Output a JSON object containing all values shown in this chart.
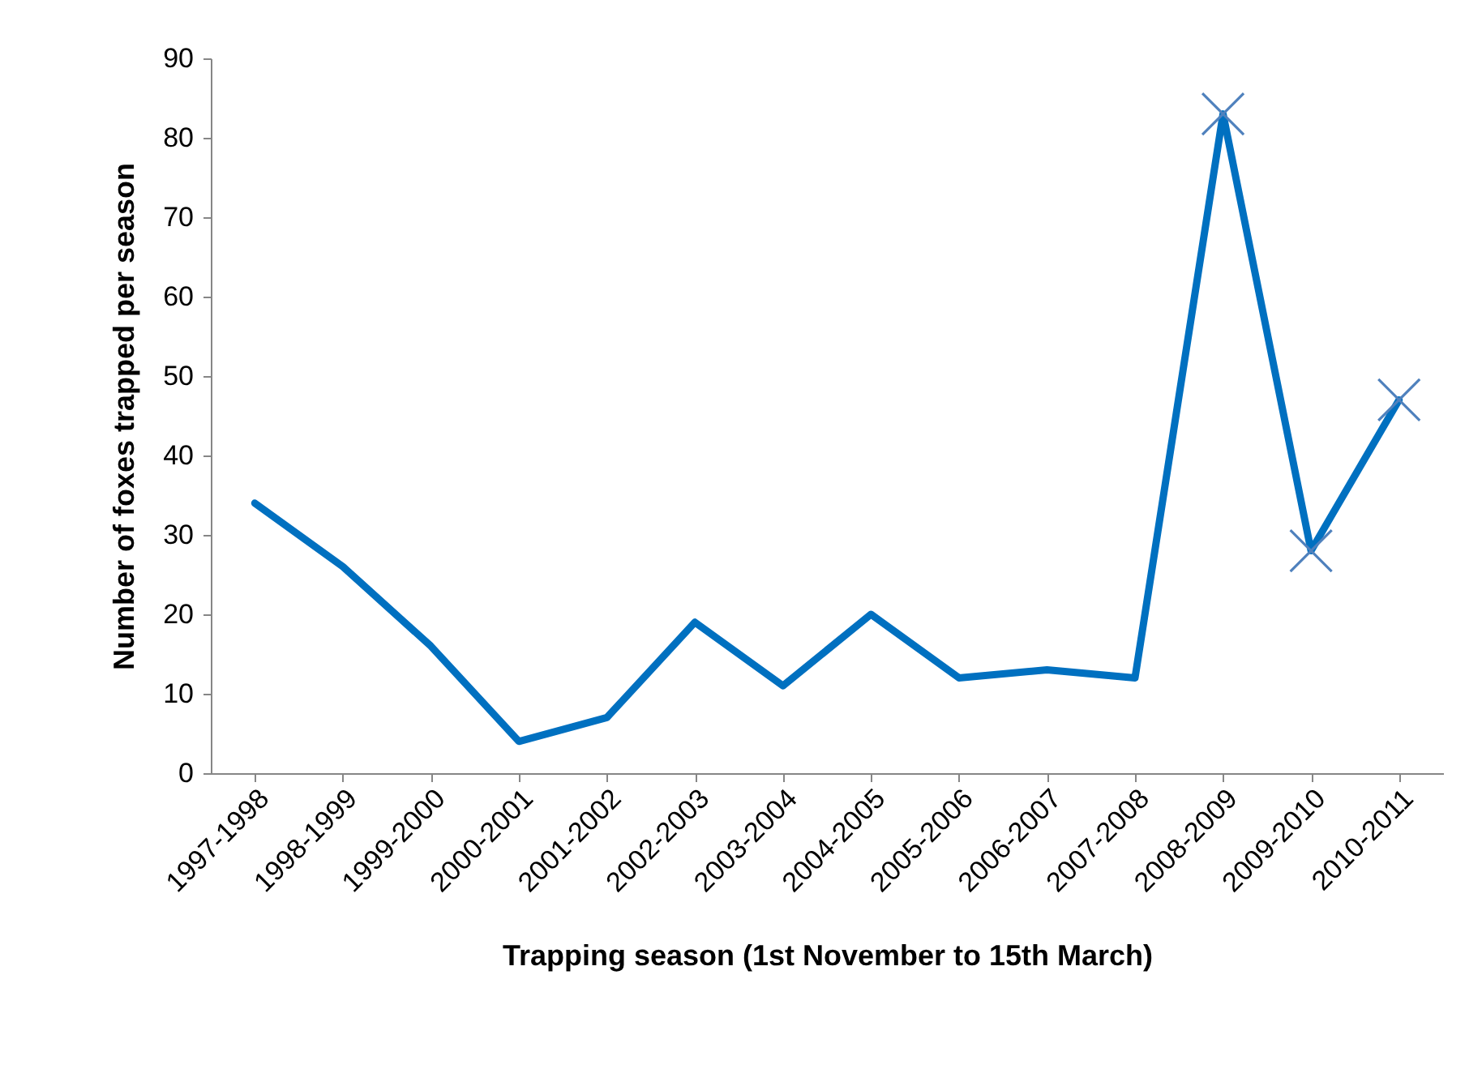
{
  "chart_data": {
    "type": "line",
    "xlabel": "Trapping season (1st November to 15th March)",
    "ylabel": "Number of foxes trapped per season",
    "categories": [
      "1997-1998",
      "1998-1999",
      "1999-2000",
      "2000-2001",
      "2001-2002",
      "2002-2003",
      "2003-2004",
      "2004-2005",
      "2005-2006",
      "2006-2007",
      "2007-2008",
      "2008-2009",
      "2009-2010",
      "2010-2011"
    ],
    "series": [
      {
        "color": "#0070c0",
        "values": [
          34,
          26,
          16,
          4,
          7,
          19,
          11,
          20,
          12,
          13,
          12,
          83,
          28,
          47
        ]
      },
      {
        "type": "scatter",
        "marker": "cross",
        "color": "#4f81bd",
        "x": [
          "2008-2009",
          "2009-2010",
          "2010-2011"
        ],
        "values": [
          83,
          28,
          47
        ]
      }
    ],
    "ylim": [
      0,
      90
    ],
    "yticks": [
      0,
      10,
      20,
      30,
      40,
      50,
      60,
      70,
      80,
      90
    ],
    "grid": false
  }
}
